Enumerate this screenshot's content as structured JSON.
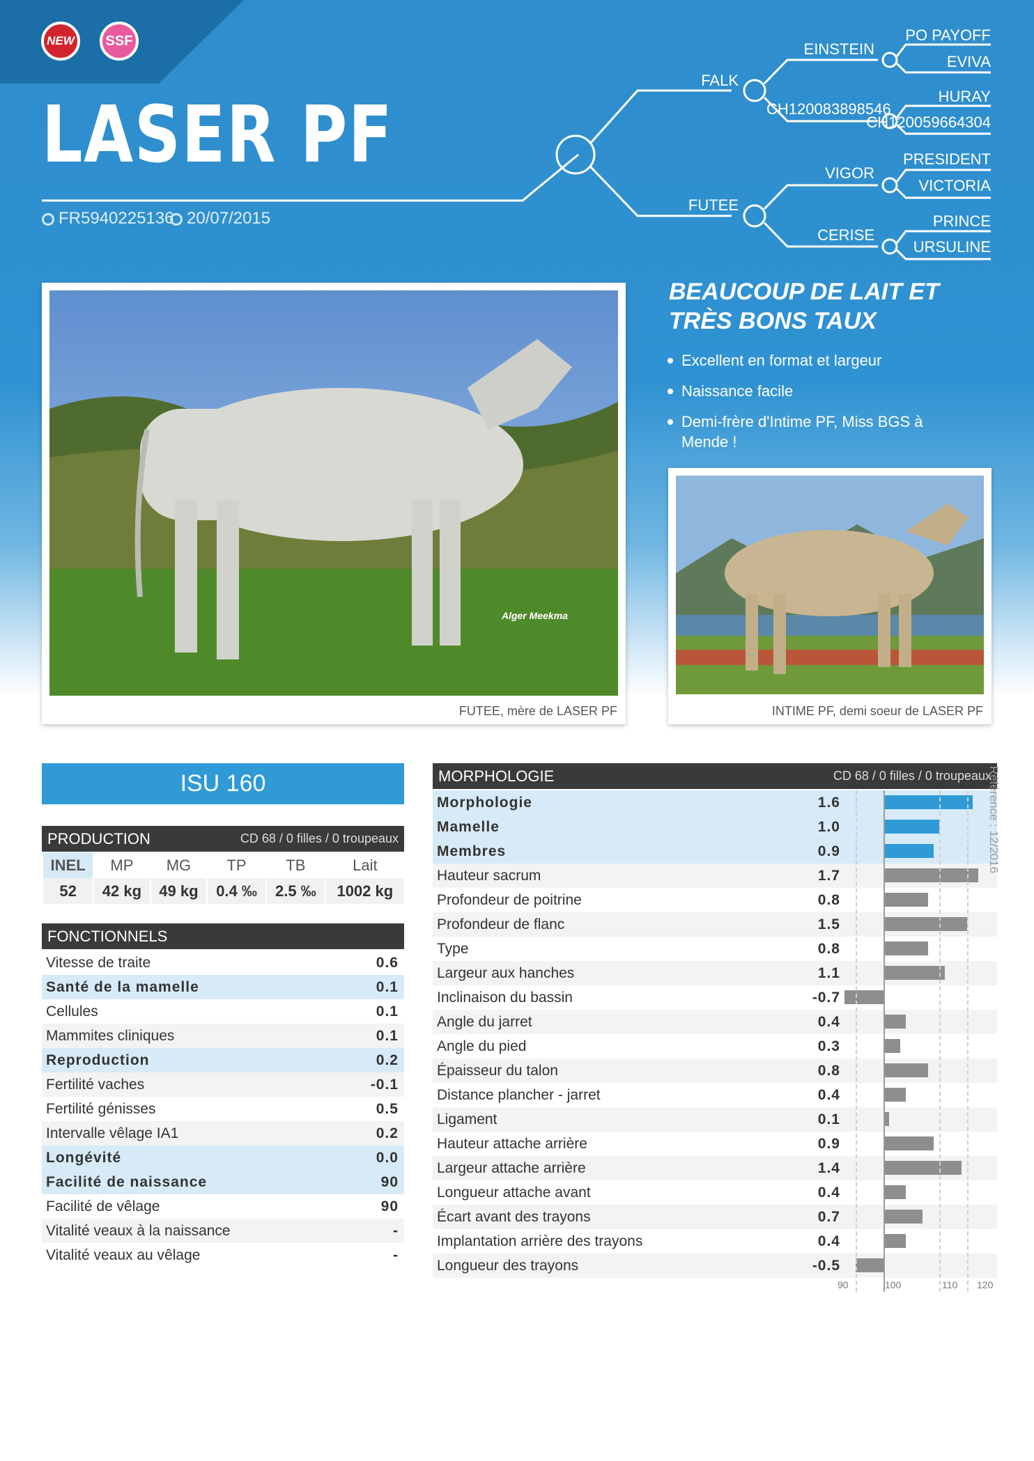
{
  "badges": {
    "new": "NEW",
    "ssf": "SSF"
  },
  "bull": {
    "name": "LASER PF",
    "id": "FR5940225136",
    "birth_date": "20/07/2015"
  },
  "pedigree": {
    "sire": "FALK",
    "sire_id": "CH120083898546",
    "dam": "FUTEE",
    "ss": "EINSTEIN",
    "sss": "PO PAYOFF",
    "ssd": "EVIVA",
    "sd_sire": "HURAY",
    "sd_id": "CH120059664304",
    "ds": "VIGOR",
    "dss": "PRESIDENT",
    "dsd": "VICTORIA",
    "dd": "CERISE",
    "dds": "PRINCE",
    "ddd": "URSULINE"
  },
  "photos": {
    "main_caption": "FUTEE, mère de LASER PF",
    "main_watermark": "Alger Meekma",
    "second_caption": "INTIME PF, demi soeur de LASER PF"
  },
  "headline": "BEAUCOUP DE LAIT ET TRÈS BONS TAUX",
  "bullets": [
    "Excellent en format et largeur",
    "Naissance facile",
    "Demi-frère d'Intime PF, Miss BGS à Mende !"
  ],
  "isu": "ISU 160",
  "production": {
    "title": "PRODUCTION",
    "meta": "CD 68 / 0 filles / 0 troupeaux",
    "headers": [
      "INEL",
      "MP",
      "MG",
      "TP",
      "TB",
      "Lait"
    ],
    "values": [
      "52",
      "42 kg",
      "49 kg",
      "0.4 ‰",
      "2.5 ‰",
      "1002 kg"
    ]
  },
  "fonctionnels": {
    "title": "FONCTIONNELS",
    "rows": [
      {
        "label": "Vitesse de traite",
        "value": "0.6",
        "bold": false
      },
      {
        "label": "Santé de la mamelle",
        "value": "0.1",
        "bold": true
      },
      {
        "label": "Cellules",
        "value": "0.1",
        "bold": false
      },
      {
        "label": "Mammites cliniques",
        "value": "0.1",
        "bold": false
      },
      {
        "label": "Reproduction",
        "value": "0.2",
        "bold": true
      },
      {
        "label": "Fertilité vaches",
        "value": "-0.1",
        "bold": false
      },
      {
        "label": "Fertilité génisses",
        "value": "0.5",
        "bold": false
      },
      {
        "label": "Intervalle vêlage IA1",
        "value": "0.2",
        "bold": false
      },
      {
        "label": "Longévité",
        "value": "0.0",
        "bold": true
      },
      {
        "label": "Facilité de naissance",
        "value": "90",
        "bold": true
      },
      {
        "label": "Facilité de vêlage",
        "value": "90",
        "bold": false
      },
      {
        "label": "Vitalité veaux à la naissance",
        "value": "-",
        "bold": false
      },
      {
        "label": "Vitalité veaux au vêlage",
        "value": "-",
        "bold": false
      }
    ]
  },
  "morphologie": {
    "title": "MORPHOLOGIE",
    "meta": "CD 68 / 0 filles / 0 troupeaux",
    "axis_labels": [
      "90",
      "100",
      "110",
      "120"
    ],
    "colors": {
      "highlight": "#2f9ad6",
      "normal": "#8e8e90"
    },
    "rows": [
      {
        "label": "Morphologie",
        "value": "1.6",
        "v": 1.6,
        "bold": true
      },
      {
        "label": "Mamelle",
        "value": "1.0",
        "v": 1.0,
        "bold": true
      },
      {
        "label": "Membres",
        "value": "0.9",
        "v": 0.9,
        "bold": true
      },
      {
        "label": "Hauteur sacrum",
        "value": "1.7",
        "v": 1.7,
        "bold": false
      },
      {
        "label": "Profondeur de poitrine",
        "value": "0.8",
        "v": 0.8,
        "bold": false
      },
      {
        "label": "Profondeur de flanc",
        "value": "1.5",
        "v": 1.5,
        "bold": false
      },
      {
        "label": "Type",
        "value": "0.8",
        "v": 0.8,
        "bold": false
      },
      {
        "label": "Largeur aux hanches",
        "value": "1.1",
        "v": 1.1,
        "bold": false
      },
      {
        "label": "Inclinaison du bassin",
        "value": "-0.7",
        "v": -0.7,
        "bold": false
      },
      {
        "label": "Angle du jarret",
        "value": "0.4",
        "v": 0.4,
        "bold": false
      },
      {
        "label": "Angle du pied",
        "value": "0.3",
        "v": 0.3,
        "bold": false
      },
      {
        "label": "Épaisseur du talon",
        "value": "0.8",
        "v": 0.8,
        "bold": false
      },
      {
        "label": "Distance plancher - jarret",
        "value": "0.4",
        "v": 0.4,
        "bold": false
      },
      {
        "label": "Ligament",
        "value": "0.1",
        "v": 0.1,
        "bold": false
      },
      {
        "label": "Hauteur attache arrière",
        "value": "0.9",
        "v": 0.9,
        "bold": false
      },
      {
        "label": "Largeur attache arrière",
        "value": "1.4",
        "v": 1.4,
        "bold": false
      },
      {
        "label": "Longueur attache avant",
        "value": "0.4",
        "v": 0.4,
        "bold": false
      },
      {
        "label": "Écart avant des trayons",
        "value": "0.7",
        "v": 0.7,
        "bold": false
      },
      {
        "label": "Implantation arrière des trayons",
        "value": "0.4",
        "v": 0.4,
        "bold": false
      },
      {
        "label": "Longueur des trayons",
        "value": "-0.5",
        "v": -0.5,
        "bold": false
      }
    ]
  },
  "reference": "Référence : 12/2016"
}
